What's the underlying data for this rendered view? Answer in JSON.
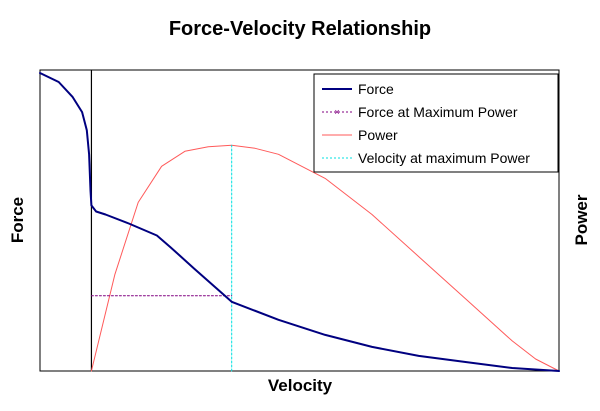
{
  "chart_data": {
    "type": "line",
    "title": "Force-Velocity Relationship",
    "xlabel": "Velocity",
    "ylabel_left": "Force",
    "ylabel_right": "Power",
    "xlim": [
      -0.11,
      1.0
    ],
    "ylim_left": [
      0,
      1.0
    ],
    "ylim_right": [
      0,
      1.0
    ],
    "grid": false,
    "legend_position": "top-right",
    "series": [
      {
        "name": "Force",
        "axis": "left",
        "color": "#000080",
        "style": "solid",
        "x": [
          -0.11,
          -0.07,
          -0.04,
          -0.02,
          -0.01,
          -0.005,
          -0.002,
          0.0,
          0.01,
          0.03,
          0.08,
          0.14,
          0.17,
          0.22,
          0.3,
          0.4,
          0.5,
          0.6,
          0.7,
          0.8,
          0.9,
          0.95,
          1.0
        ],
        "y": [
          0.99,
          0.96,
          0.91,
          0.86,
          0.8,
          0.72,
          0.6,
          0.55,
          0.53,
          0.52,
          0.49,
          0.45,
          0.41,
          0.34,
          0.23,
          0.17,
          0.12,
          0.08,
          0.05,
          0.03,
          0.01,
          0.005,
          0.0
        ]
      },
      {
        "name": "Force at Maximum Power",
        "axis": "left",
        "color": "#800080",
        "style": "dotted",
        "x": [
          0.0,
          0.3
        ],
        "y": [
          0.25,
          0.25
        ]
      },
      {
        "name": "Power",
        "axis": "right",
        "color": "#ff5a5a",
        "style": "solid",
        "x": [
          0.0,
          0.05,
          0.1,
          0.15,
          0.2,
          0.25,
          0.3,
          0.35,
          0.4,
          0.5,
          0.6,
          0.7,
          0.8,
          0.9,
          0.95,
          1.0
        ],
        "y": [
          0.0,
          0.32,
          0.56,
          0.68,
          0.73,
          0.745,
          0.75,
          0.74,
          0.72,
          0.64,
          0.52,
          0.38,
          0.24,
          0.1,
          0.04,
          0.0
        ]
      },
      {
        "name": "Velocity at maximum Power",
        "axis": "right",
        "color": "#00e0e0",
        "style": "dotted",
        "x": [
          0.3,
          0.3
        ],
        "y": [
          0.0,
          0.75
        ]
      }
    ],
    "vertical_reference_x": 0.0
  }
}
